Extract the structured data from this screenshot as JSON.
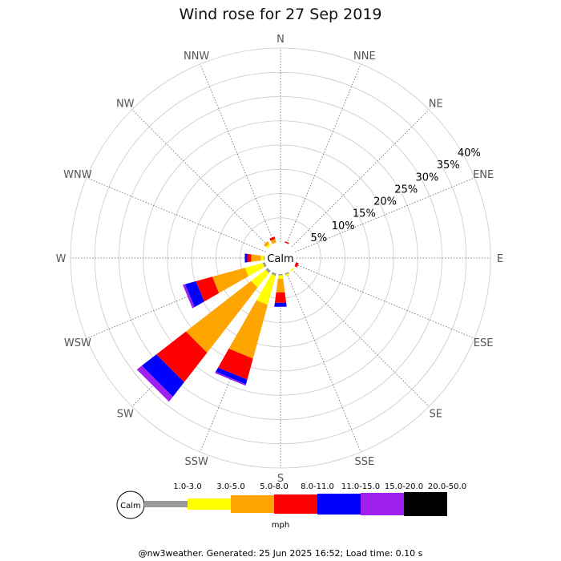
{
  "chart_data": {
    "type": "windrose",
    "title": "Wind rose for 27 Sep 2019",
    "directions": [
      "N",
      "NNE",
      "NE",
      "ENE",
      "E",
      "ESE",
      "SE",
      "SSE",
      "S",
      "SSW",
      "SW",
      "WSW",
      "W",
      "WNW",
      "NW",
      "NNW"
    ],
    "ring_labels": [
      "5%",
      "10%",
      "15%",
      "20%",
      "25%",
      "30%",
      "35%",
      "40%"
    ],
    "rlim": [
      0,
      40
    ],
    "center_label": "Calm",
    "speed_bins": [
      {
        "label": "1.0-3.0",
        "color": "#999999"
      },
      {
        "label": "3.0-5.0",
        "color": "#ffff00"
      },
      {
        "label": "5.0-8.0",
        "color": "#ffa500"
      },
      {
        "label": "8.0-11.0",
        "color": "#ff0000"
      },
      {
        "label": "11.0-15.0",
        "color": "#0000ff"
      },
      {
        "label": "15.0-20.0",
        "color": "#a020f0"
      },
      {
        "label": "20.0-50.0",
        "color": "#000000"
      }
    ],
    "units": "mph",
    "series": [
      {
        "direction": "N",
        "values": [
          0,
          0,
          0,
          0,
          0,
          0,
          0
        ]
      },
      {
        "direction": "NNE",
        "values": [
          0,
          0,
          0,
          0.3,
          0,
          0,
          0
        ]
      },
      {
        "direction": "NE",
        "values": [
          0,
          0,
          0,
          0,
          0,
          0,
          0
        ]
      },
      {
        "direction": "ENE",
        "values": [
          0,
          0,
          0,
          0,
          0,
          0,
          0
        ]
      },
      {
        "direction": "E",
        "values": [
          0,
          0,
          0,
          0,
          0,
          0,
          0
        ]
      },
      {
        "direction": "ESE",
        "values": [
          0,
          0,
          0,
          0.6,
          0,
          0,
          0
        ]
      },
      {
        "direction": "SE",
        "values": [
          0,
          0.3,
          0,
          0,
          0,
          0,
          0
        ]
      },
      {
        "direction": "SSE",
        "values": [
          0.3,
          0.3,
          0,
          0,
          0,
          0,
          0
        ]
      },
      {
        "direction": "S",
        "values": [
          0.3,
          0.7,
          2.8,
          2.2,
          0.8,
          0,
          0
        ]
      },
      {
        "direction": "SSW",
        "values": [
          0.5,
          6.2,
          11.5,
          4.5,
          1.0,
          0.3,
          0
        ]
      },
      {
        "direction": "SW",
        "values": [
          0.6,
          3.8,
          17.0,
          7.7,
          3.8,
          1.3,
          0
        ]
      },
      {
        "direction": "WSW",
        "values": [
          0.5,
          3.8,
          7.0,
          3.5,
          2.3,
          0.5,
          0
        ]
      },
      {
        "direction": "W",
        "values": [
          0.2,
          0.6,
          2.0,
          0.8,
          0.5,
          0,
          0
        ]
      },
      {
        "direction": "WNW",
        "values": [
          0,
          0,
          0,
          0,
          0,
          0,
          0
        ]
      },
      {
        "direction": "NW",
        "values": [
          0,
          0.5,
          0.6,
          0,
          0,
          0,
          0
        ]
      },
      {
        "direction": "NNW",
        "values": [
          0,
          0,
          0.8,
          0.5,
          0,
          0,
          0
        ]
      }
    ]
  },
  "footer": "@nw3weather. Generated: 25 Jun 2025 16:52; Load time: 0.10 s"
}
